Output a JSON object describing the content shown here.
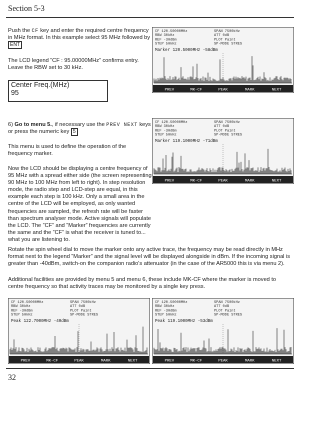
{
  "header": {
    "section": "Section 5-3"
  },
  "p1": [
    "Push the ",
    "CF",
    " key and enter the required centre frequency in MHz format.  In this example select 95 MHz followed by ",
    "ENT"
  ],
  "p2": "The LCD legend “CF : 95.00000MHz” confirms entry.  Leave the RBW set to 30 kHz.",
  "lcd_box": {
    "label": "Center Freq.(MHz)",
    "value": "95"
  },
  "p3": [
    "6)  ",
    "Go to menu 5.",
    ", if necessary use the ",
    "PREV NEXT",
    " keys or press the numeric key ",
    "5"
  ],
  "p3b": "This menu is used to define the operation of the frequency marker.",
  "p4": "Now the LCD should be displaying a centre frequency of 95 MHz with a spread either side (the screen representing 90 MHz to 100 MHz from left to right).  In step resolution mode, the radio step and LCD-step are equal, in this example each step is 100 kHz.  Only a small area in the centre of the LCD will be employed, as only wanted frequencies are sampled, the refresh rate will be faster than spectrum analyser mode.  Active signals will populate the LCD.  The “CF” and “Marker” frequencies are currently the same and the “CF” is what the receiver is tuned to... what you are listening to.",
  "p5": "Rotate the spin wheel dial to move the marker onto any active trace, the frequency may be read directly in MHz format next to the legend “Marker” and the signal level will be displayed alongside in dBm.  If the incoming signal is greater than -40dBm, switch-on the companion radio's attenuator (in the case of the AR5000 this is via menu 2).",
  "p6": "Additional facilities are provided by menu 5 and menu 6, these include MK-CF where the marker is moved to centre frequency so that activity traces may be monitored by a single key press.",
  "screens": [
    {
      "params": [
        "CF   120.50000MHz",
        "SPAN  7500kHz",
        "RBW  30kHz",
        "ATT  0dB",
        "REF  -30dBm",
        "PLOT  Paint",
        "STEP  50kHz",
        "SP-MODE  STRES"
      ],
      "marker": "Marker  120.5000MHz  -58dBm",
      "menu": [
        "PREV",
        "MK-CF",
        "PEAK",
        "MARK",
        "NEXT"
      ]
    },
    {
      "params": [
        "CF   120.50000MHz",
        "SPAN  7500kHz",
        "RBW  30kHz",
        "ATT  0dB",
        "REF  -30dBm",
        "PLOT  Paint",
        "STEP  50kHz",
        "SP-MODE  STRES"
      ],
      "marker": "Marker  119.1000MHz  -71dBm",
      "menu": [
        "PREV",
        "MK-CF",
        "PEAK",
        "MARK",
        "NEXT"
      ]
    },
    {
      "params": [
        "CF   120.50000MHz",
        "SPAN  7500kHz",
        "RBW  30kHz",
        "ATT  0dB",
        "REF  -30dBm",
        "PLOT  Paint",
        "STEP  50kHz",
        "SP-MODE  STRES"
      ],
      "marker": "Peak  122.7000MHz  -40dBm",
      "menu": [
        "PREV",
        "MK-CF",
        "PEAK",
        "MARK",
        "NEXT"
      ]
    },
    {
      "params": [
        "CF   120.50000MHz",
        "SPAN  7500kHz",
        "RBW  30kHz",
        "ATT  0dB",
        "REF  -30dBm",
        "PLOT  Paint",
        "STEP  50kHz",
        "SP-MODE  STRES"
      ],
      "marker": "Peak  119.1000MHz  -53dBm",
      "menu": [
        "PREV",
        "MK-CF",
        "PEAK",
        "MARK",
        "NEXT"
      ]
    }
  ],
  "page_number": "32"
}
